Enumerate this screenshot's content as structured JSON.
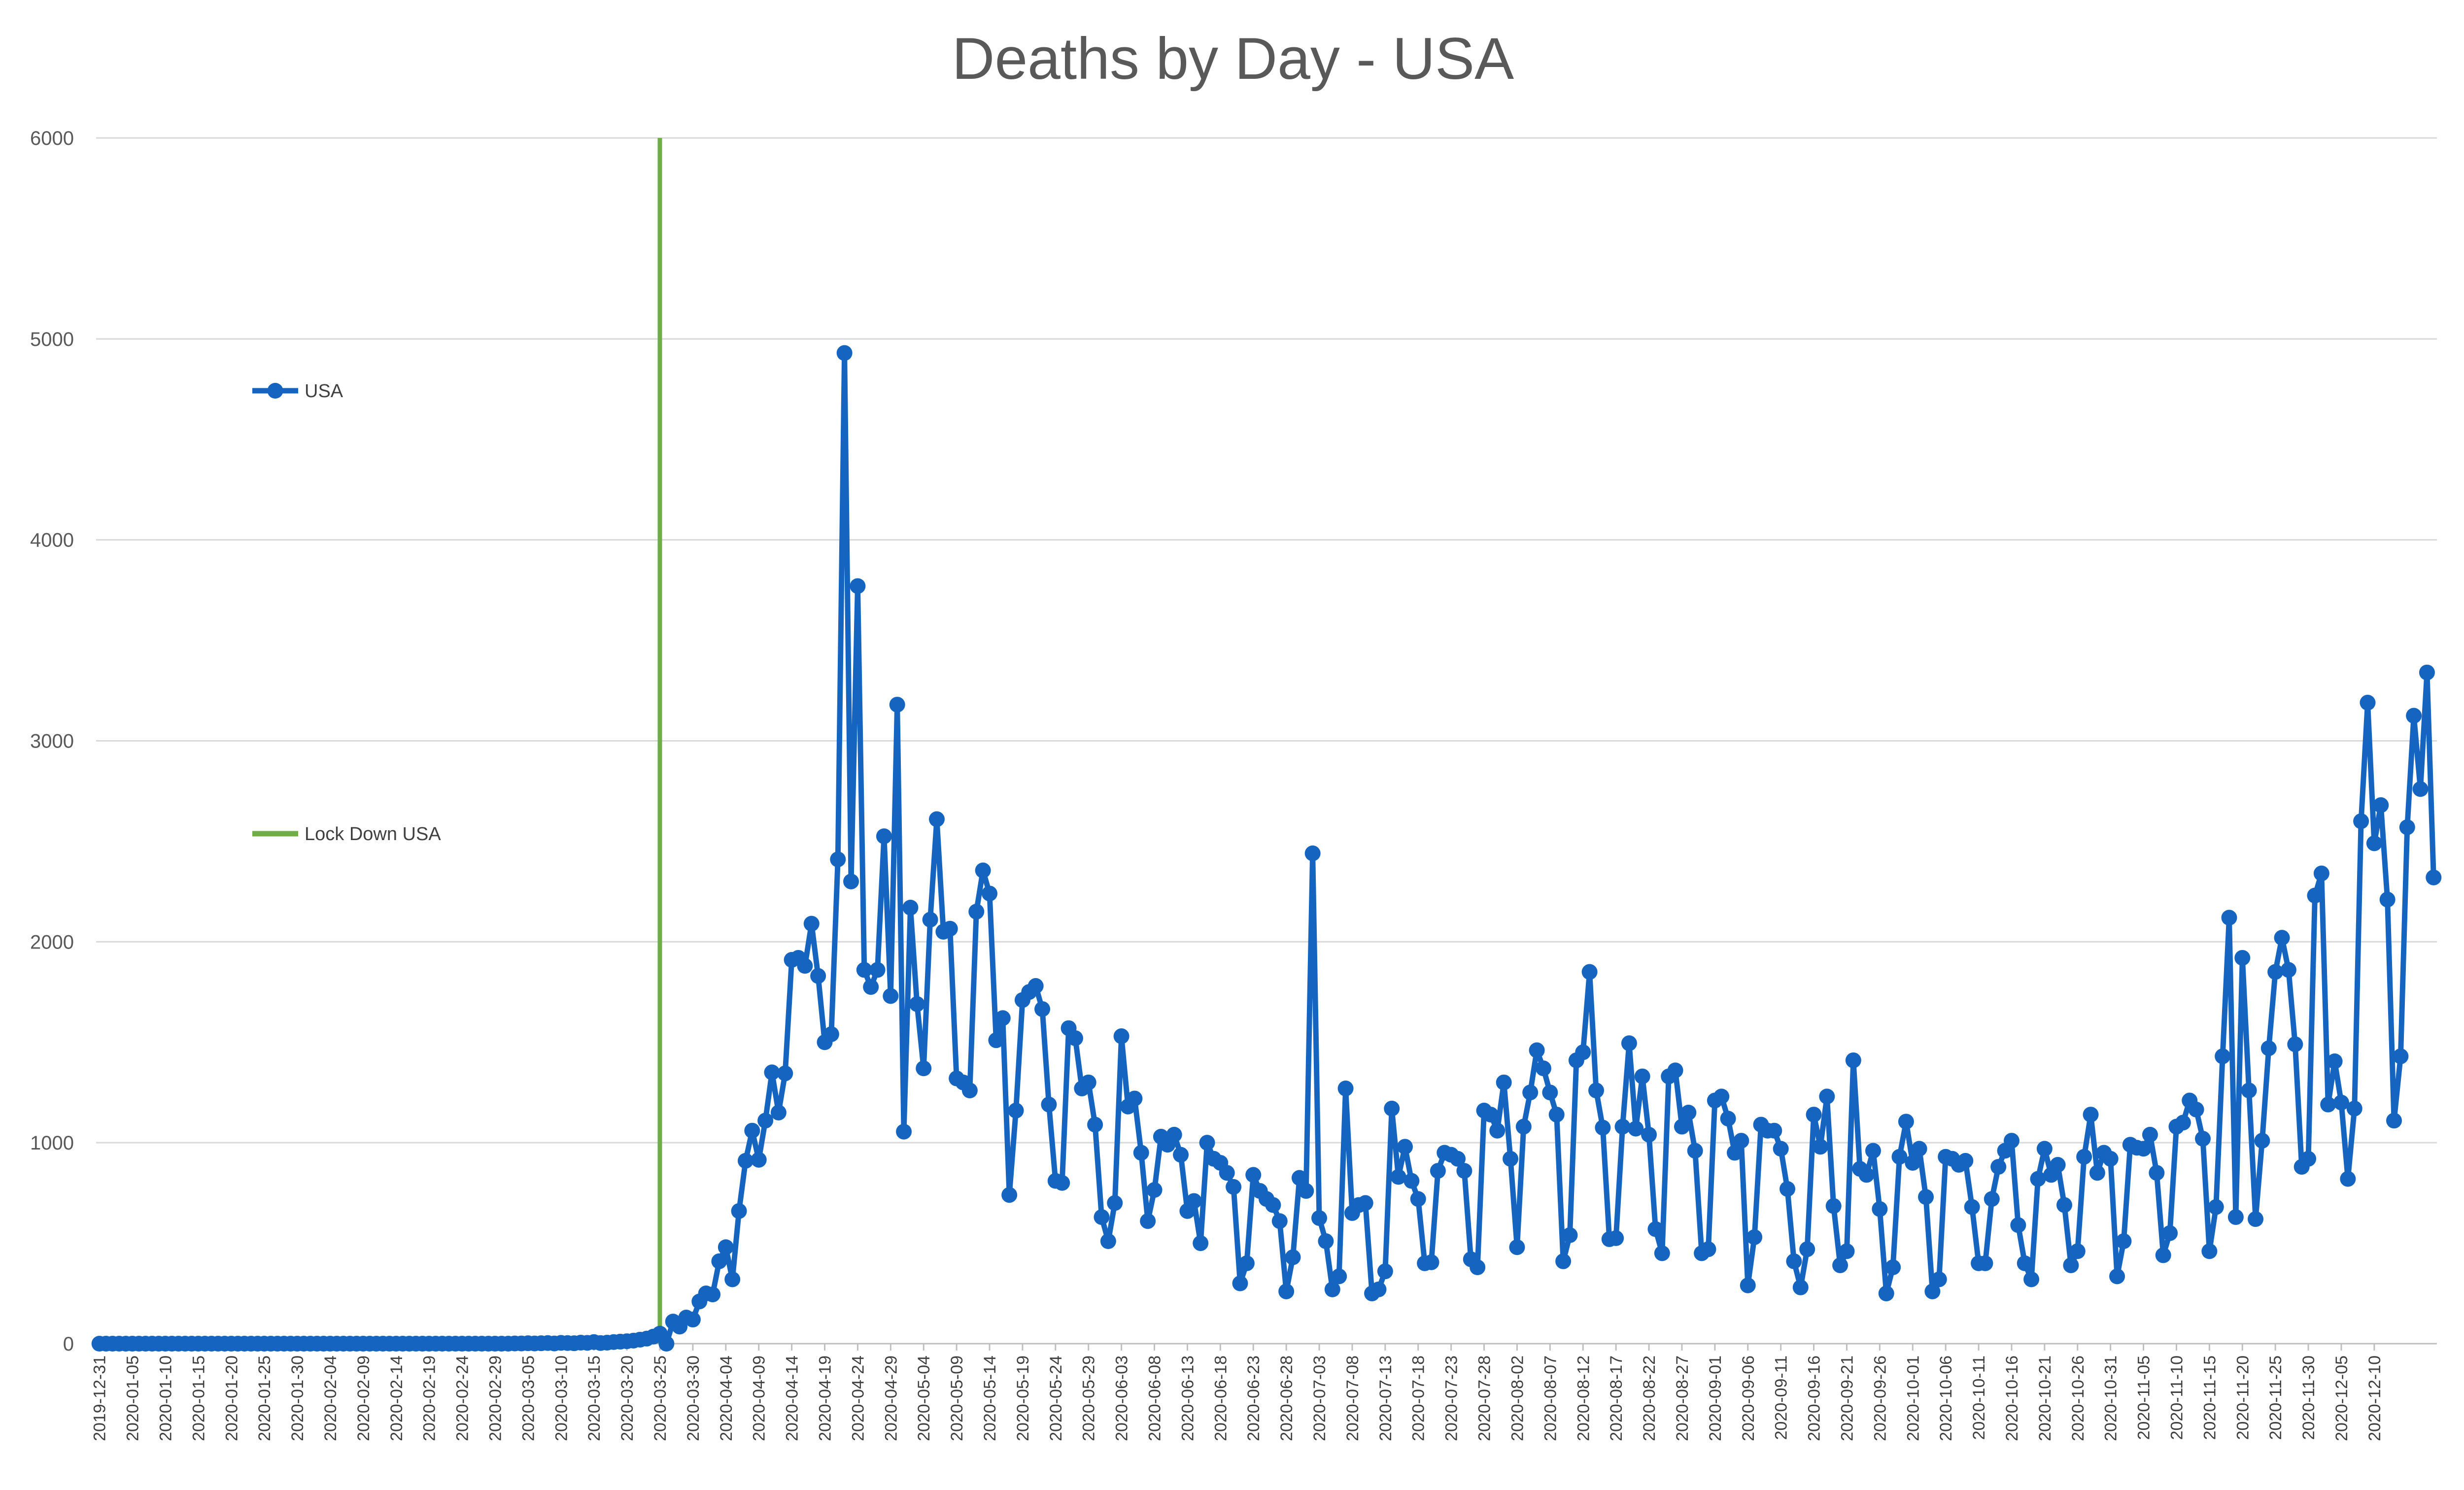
{
  "chart_data": {
    "type": "line",
    "title": "Deaths by Day - USA",
    "xlabel": "",
    "ylabel": "",
    "ylim": [
      0,
      6000
    ],
    "yticks": [
      0,
      1000,
      2000,
      3000,
      4000,
      5000,
      6000
    ],
    "start_date": "2019-12-31",
    "x_tick_labels": [
      "2019-12-31",
      "2020-01-05",
      "2020-01-10",
      "2020-01-15",
      "2020-01-20",
      "2020-01-25",
      "2020-01-30",
      "2020-02-04",
      "2020-02-09",
      "2020-02-14",
      "2020-02-19",
      "2020-02-24",
      "2020-02-29",
      "2020-03-05",
      "2020-03-10",
      "2020-03-15",
      "2020-03-20",
      "2020-03-25",
      "2020-03-30",
      "2020-04-04",
      "2020-04-09",
      "2020-04-14",
      "2020-04-19",
      "2020-04-24",
      "2020-04-29",
      "2020-05-04",
      "2020-05-09",
      "2020-05-14",
      "2020-05-19",
      "2020-05-24",
      "2020-05-29",
      "2020-06-03",
      "2020-06-08",
      "2020-06-13",
      "2020-06-18",
      "2020-06-23",
      "2020-06-28",
      "2020-07-03",
      "2020-07-08",
      "2020-07-13",
      "2020-07-18",
      "2020-07-23",
      "2020-07-28",
      "2020-08-02",
      "2020-08-07",
      "2020-08-12",
      "2020-08-17",
      "2020-08-22",
      "2020-08-27",
      "2020-09-01",
      "2020-09-06",
      "2020-09-11",
      "2020-09-16",
      "2020-09-21",
      "2020-09-26",
      "2020-10-01",
      "2020-10-06",
      "2020-10-11",
      "2020-10-16",
      "2020-10-21",
      "2020-10-26",
      "2020-10-31",
      "2020-11-05",
      "2020-11-10",
      "2020-11-15",
      "2020-11-20",
      "2020-11-25",
      "2020-11-30",
      "2020-12-05",
      "2020-12-10"
    ],
    "grid": true,
    "legend_position": "left",
    "series": [
      {
        "name": "USA",
        "color": "#1565c0",
        "marker": "circle",
        "values": [
          0,
          0,
          0,
          0,
          0,
          0,
          0,
          0,
          0,
          0,
          0,
          0,
          0,
          0,
          0,
          0,
          0,
          0,
          0,
          0,
          0,
          0,
          0,
          0,
          0,
          0,
          0,
          0,
          0,
          0,
          0,
          0,
          0,
          0,
          0,
          0,
          0,
          0,
          0,
          0,
          0,
          0,
          0,
          0,
          0,
          0,
          0,
          0,
          0,
          0,
          0,
          0,
          0,
          0,
          0,
          0,
          0,
          0,
          0,
          0,
          0,
          0,
          0,
          1,
          1,
          2,
          1,
          2,
          3,
          1,
          4,
          3,
          2,
          5,
          4,
          8,
          3,
          5,
          8,
          10,
          12,
          15,
          20,
          25,
          35,
          50,
          0,
          110,
          85,
          130,
          120,
          210,
          250,
          245,
          410,
          480,
          320,
          660,
          910,
          1060,
          915,
          1110,
          1350,
          1150,
          1345,
          1910,
          1920,
          1880,
          2090,
          1830,
          1500,
          1540,
          2410,
          4930,
          2300,
          3770,
          1860,
          1775,
          1860,
          2525,
          1730,
          3180,
          1055,
          2170,
          1690,
          1370,
          2110,
          2610,
          2050,
          2065,
          1320,
          1300,
          1260,
          2150,
          2355,
          2240,
          1510,
          1620,
          740,
          1160,
          1710,
          1750,
          1780,
          1665,
          1190,
          810,
          800,
          1570,
          1520,
          1270,
          1300,
          1090,
          630,
          510,
          700,
          1530,
          1180,
          1220,
          950,
          610,
          765,
          1030,
          990,
          1040,
          940,
          660,
          710,
          500,
          1000,
          920,
          900,
          850,
          780,
          300,
          400,
          840,
          760,
          720,
          690,
          610,
          260,
          430,
          825,
          760,
          2440,
          625,
          510,
          270,
          335,
          1270,
          650,
          690,
          700,
          250,
          270,
          360,
          1170,
          830,
          980,
          810,
          720,
          400,
          405,
          860,
          950,
          940,
          920,
          860,
          420,
          380,
          1160,
          1140,
          1060,
          1300,
          920,
          480,
          1080,
          1250,
          1460,
          1370,
          1250,
          1140,
          410,
          540,
          1410,
          1450,
          1850,
          1260,
          1075,
          520,
          525,
          1080,
          1495,
          1070,
          1330,
          1040,
          570,
          450,
          1330,
          1360,
          1080,
          1150,
          960,
          450,
          470,
          1210,
          1230,
          1120,
          950,
          1010,
          290,
          530,
          1090,
          1060,
          1060,
          970,
          770,
          410,
          280,
          470,
          1140,
          980,
          1230,
          685,
          390,
          460,
          1410,
          870,
          840,
          960,
          670,
          250,
          380,
          930,
          1105,
          900,
          970,
          730,
          260,
          320,
          930,
          920,
          890,
          910,
          680,
          400,
          400,
          720,
          880,
          960,
          1010,
          590,
          400,
          320,
          820,
          970,
          840,
          890,
          690,
          390,
          460,
          930,
          1140,
          850,
          950,
          920,
          335,
          510,
          990,
          975,
          970,
          1040,
          850,
          440,
          550,
          1080,
          1100,
          1210,
          1165,
          1020,
          460,
          680,
          1430,
          2120,
          630,
          1920,
          1260,
          620,
          1010,
          1470,
          1850,
          2020,
          1860,
          1490,
          880,
          920,
          2230,
          2340,
          1190,
          1405,
          1200,
          820,
          1170,
          2600,
          3190,
          2490,
          2680,
          2210,
          1110,
          1430,
          2570,
          3125,
          2760,
          3340,
          2320
        ]
      }
    ],
    "annotations": [
      {
        "type": "vertical_line",
        "name": "Lock Down USA",
        "date": "2020-03-25",
        "color": "#70ad47"
      }
    ]
  }
}
